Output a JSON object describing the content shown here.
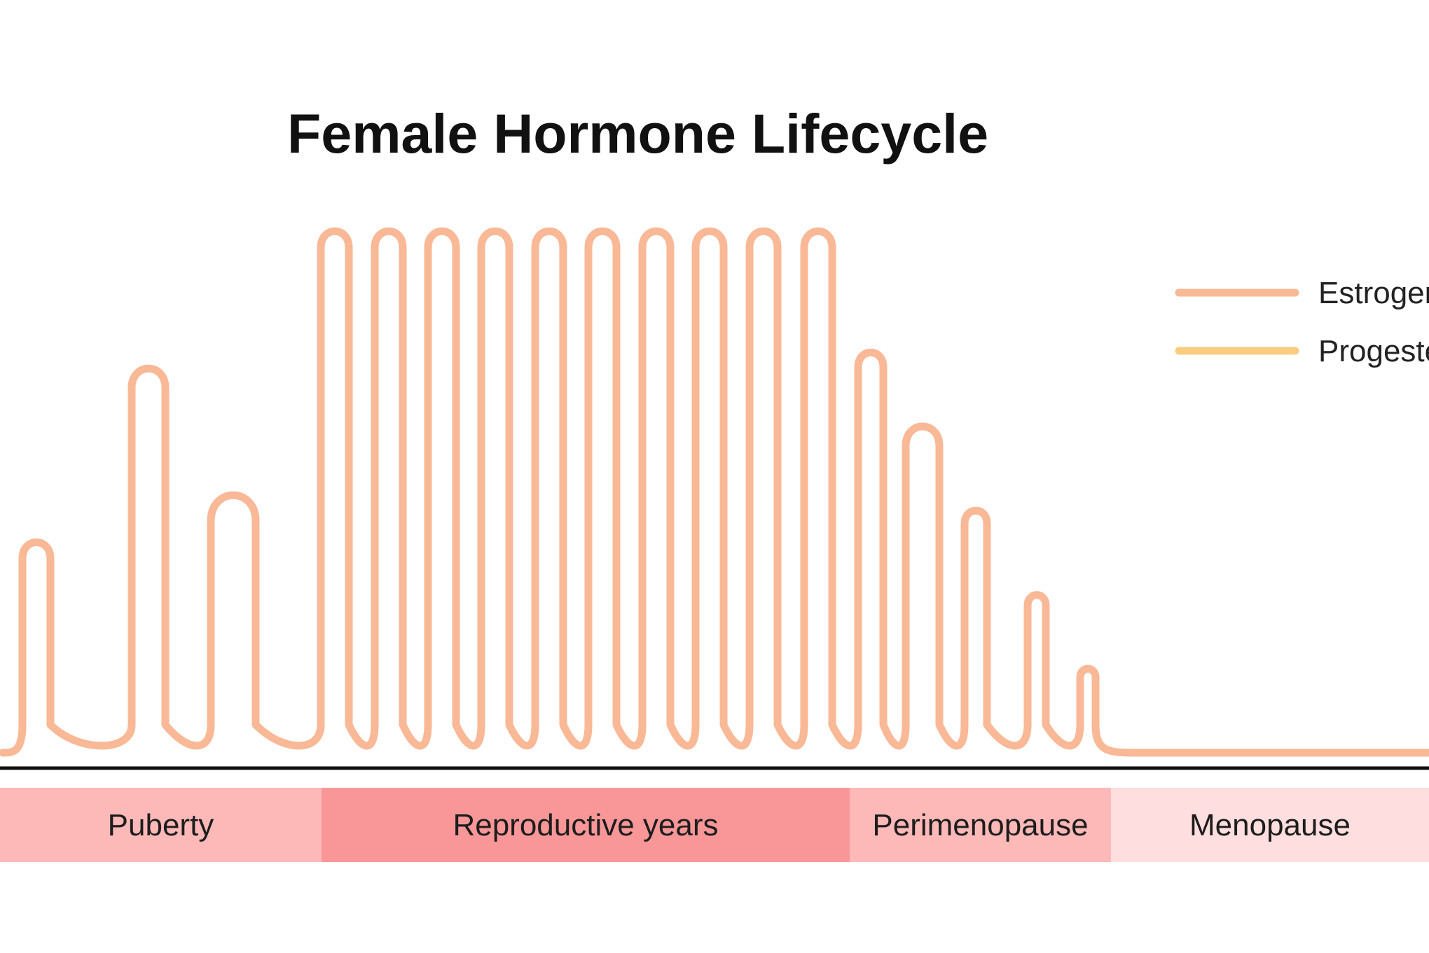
{
  "chart_data": {
    "type": "line",
    "title": "Female Hormone Lifecycle",
    "xlabel": "",
    "ylabel": "",
    "grid": false,
    "legend_placement": "right",
    "y_axis_shown": false,
    "x_axis_shown": true,
    "ylim": [
      0,
      100
    ],
    "series": [
      {
        "name": "Estrogen",
        "color": "#F9B896",
        "baseline": 0,
        "cycles": [
          {
            "peak": 40
          },
          {
            "peak": 73
          },
          {
            "peak": 49
          },
          {
            "peak": 99
          },
          {
            "peak": 99
          },
          {
            "peak": 99
          },
          {
            "peak": 99
          },
          {
            "peak": 99
          },
          {
            "peak": 99
          },
          {
            "peak": 99
          },
          {
            "peak": 99
          },
          {
            "peak": 99
          },
          {
            "peak": 99
          },
          {
            "peak": 76
          },
          {
            "peak": 62
          },
          {
            "peak": 46
          },
          {
            "peak": 30
          },
          {
            "peak": 16
          }
        ]
      },
      {
        "name": "Progesterone",
        "color": "#F9CD80",
        "values": []
      }
    ],
    "legend": {
      "entries": [
        {
          "label": "Estrogen",
          "color": "#F9B896"
        },
        {
          "label": "Progesterone",
          "color": "#F9CD80"
        }
      ]
    },
    "phases": [
      {
        "label": "Puberty",
        "color": "#FDB9B8"
      },
      {
        "label": "Reproductive years",
        "color": "#F99798"
      },
      {
        "label": "Perimenopause",
        "color": "#FDB9B8"
      },
      {
        "label": "Menopause",
        "color": "#FEDEDE"
      }
    ],
    "axis_color": "#111111"
  }
}
